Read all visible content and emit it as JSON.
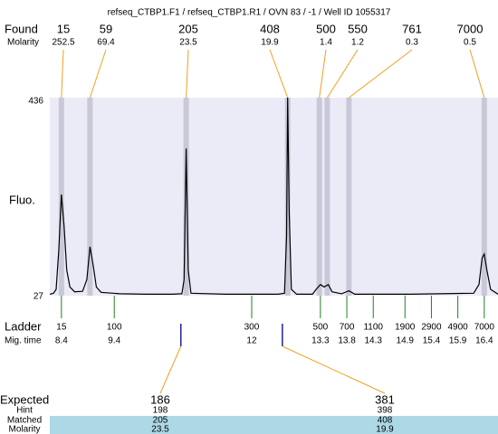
{
  "chart_data": {
    "type": "line",
    "title": "refseq_CTBP1.F1 / refseq_CTBP1.R1 / OVN 83 / -1 / Well ID 1055317",
    "y_label": "Fluo.",
    "ylim": [
      27,
      436
    ],
    "yticks": [
      27,
      436
    ],
    "xlim": [
      8.18,
      16.66
    ],
    "color": "#000000",
    "x": [
      8.18,
      8.25,
      8.3,
      8.35,
      8.4,
      8.45,
      8.5,
      8.56,
      8.65,
      8.8,
      8.88,
      8.94,
      9.0,
      9.06,
      9.15,
      9.5,
      10.0,
      10.5,
      10.68,
      10.72,
      10.76,
      10.8,
      10.85,
      11.5,
      12.5,
      12.62,
      12.66,
      12.68,
      12.71,
      12.75,
      12.85,
      13.15,
      13.22,
      13.3,
      13.37,
      13.45,
      13.52,
      13.7,
      13.84,
      13.95,
      15.0,
      16.2,
      16.3,
      16.36,
      16.4,
      16.45,
      16.52,
      16.66
    ],
    "values": [
      30,
      32,
      40,
      120,
      236,
      170,
      80,
      45,
      35,
      36,
      60,
      128,
      90,
      45,
      34,
      31,
      30,
      30,
      31,
      60,
      331,
      80,
      32,
      30,
      30,
      32,
      150,
      436,
      200,
      40,
      30,
      30,
      40,
      50,
      45,
      50,
      35,
      31,
      37,
      30,
      30,
      32,
      50,
      105,
      113,
      80,
      40,
      30
    ],
    "found": {
      "label": "Found",
      "sizes": [
        15,
        59,
        205,
        408,
        500,
        550,
        761,
        7000
      ],
      "molarity_label": "Molarity",
      "molarity": [
        252.5,
        69.4,
        23.5,
        19.9,
        1.4,
        1.2,
        0.3,
        0.5
      ],
      "times": [
        8.4,
        8.94,
        10.76,
        12.68,
        13.28,
        13.43,
        13.84,
        16.4
      ]
    },
    "ladder": {
      "label": "Ladder",
      "sizes": [
        15,
        100,
        300,
        500,
        700,
        1100,
        1900,
        2900,
        4900,
        7000
      ],
      "time_label": "Mig. time",
      "times": [
        8.4,
        9.4,
        12,
        13.3,
        13.8,
        14.3,
        14.9,
        15.4,
        15.9,
        16.4
      ]
    },
    "expected": {
      "label": "Expected",
      "sizes": [
        186,
        381
      ],
      "times": [
        10.66,
        12.58
      ],
      "hint_label": "Hint",
      "hint": [
        198,
        398
      ],
      "matched_label": "Matched",
      "matched": [
        205,
        408
      ],
      "molarity_label": "Molarity",
      "molarity": [
        23.5,
        19.9
      ]
    }
  }
}
